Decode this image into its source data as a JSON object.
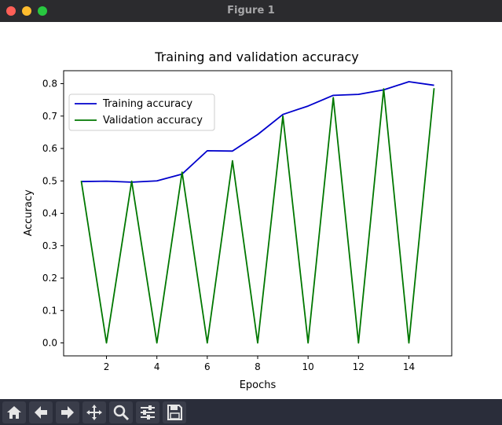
{
  "window": {
    "title": "Figure 1"
  },
  "toolbar": {
    "buttons": [
      {
        "name": "home-button",
        "icon": "home-icon"
      },
      {
        "name": "back-button",
        "icon": "arrow-left-icon"
      },
      {
        "name": "forward-button",
        "icon": "arrow-right-icon"
      },
      {
        "name": "pan-button",
        "icon": "move-icon"
      },
      {
        "name": "zoom-button",
        "icon": "zoom-icon"
      },
      {
        "name": "configure-subplots-button",
        "icon": "sliders-icon"
      },
      {
        "name": "save-button",
        "icon": "save-icon"
      }
    ]
  },
  "chart_data": {
    "type": "line",
    "title": "Training and validation accuracy",
    "xlabel": "Epochs",
    "ylabel": "Accuracy",
    "x": [
      1,
      2,
      3,
      4,
      5,
      6,
      7,
      8,
      9,
      10,
      11,
      12,
      13,
      14,
      15
    ],
    "xlim": [
      0.3,
      15.7
    ],
    "ylim": [
      -0.04,
      0.84
    ],
    "xticks": [
      "2",
      "4",
      "6",
      "8",
      "10",
      "12",
      "14"
    ],
    "yticks": [
      "0.0",
      "0.1",
      "0.2",
      "0.3",
      "0.4",
      "0.5",
      "0.6",
      "0.7",
      "0.8"
    ],
    "grid": false,
    "legend": "upper-left",
    "series": [
      {
        "name": "Training accuracy",
        "color": "#0000cc",
        "values": [
          0.498,
          0.499,
          0.496,
          0.5,
          0.521,
          0.593,
          0.592,
          0.643,
          0.705,
          0.731,
          0.764,
          0.767,
          0.781,
          0.806,
          0.795
        ]
      },
      {
        "name": "Validation accuracy",
        "color": "#007700",
        "values": [
          0.5,
          0.0,
          0.499,
          0.0,
          0.527,
          0.0,
          0.562,
          0.0,
          0.7,
          0.0,
          0.757,
          0.0,
          0.784,
          0.0,
          0.786
        ]
      }
    ]
  }
}
